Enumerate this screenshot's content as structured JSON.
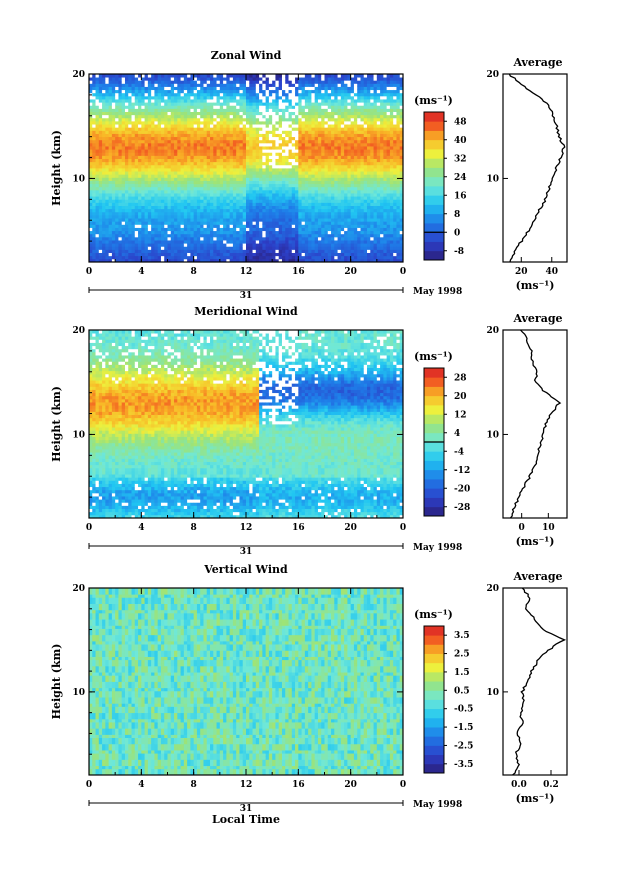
{
  "chart_data": [
    {
      "type": "heatmap",
      "title": "Zonal Wind",
      "ylabel": "Height (km)",
      "xlabel": "",
      "xlim": [
        0,
        24
      ],
      "ylim": [
        2,
        20
      ],
      "x_ticks": [
        "0",
        "4",
        "8",
        "12",
        "16",
        "20",
        "0"
      ],
      "y_ticks": [
        "10",
        "20"
      ],
      "date_day": "31",
      "date_label": "May 1998",
      "colorbar": {
        "unit_label": "(ms⁻¹)",
        "ticks": [
          "48",
          "40",
          "32",
          "24",
          "16",
          "8",
          "0",
          "-8"
        ],
        "min": -12,
        "max": 52,
        "zero_line": 0
      },
      "field": {
        "description_values": "wind speed by local time and height",
        "jet_height_km": 13,
        "jet_peak": 46,
        "low_level_min": -4
      },
      "average_profile": {
        "title": "Average",
        "xlabel": "(ms⁻¹)",
        "x_ticks": [
          "20",
          "40"
        ],
        "xlim": [
          8,
          50
        ],
        "y_ticks": [
          "10",
          "20"
        ],
        "heights": [
          2,
          3,
          4,
          5,
          6,
          7,
          8,
          9,
          10,
          11,
          12,
          13,
          14,
          15,
          16,
          17,
          18,
          19,
          20
        ],
        "values": [
          12,
          16,
          20,
          25,
          28,
          32,
          36,
          38,
          40,
          43,
          46,
          48,
          45,
          43,
          41,
          38,
          30,
          20,
          12
        ]
      }
    },
    {
      "type": "heatmap",
      "title": "Meridional Wind",
      "ylabel": "Height (km)",
      "xlabel": "",
      "xlim": [
        0,
        24
      ],
      "ylim": [
        2,
        20
      ],
      "x_ticks": [
        "0",
        "4",
        "8",
        "12",
        "16",
        "20",
        "0"
      ],
      "y_ticks": [
        "10",
        "20"
      ],
      "date_day": "31",
      "date_label": "May 1998",
      "colorbar": {
        "unit_label": "(ms⁻¹)",
        "ticks": [
          "28",
          "20",
          "12",
          "4",
          "-4",
          "-12",
          "-20",
          "-28"
        ],
        "min": -32,
        "max": 32,
        "zero_line": 0
      },
      "field": {
        "description_values": "wind speed by local time and height",
        "jet_height_km": 13,
        "jet_peak": 26,
        "upper_negative_min": -22,
        "low_level_min": -16
      },
      "average_profile": {
        "title": "Average",
        "xlabel": "(ms⁻¹)",
        "x_ticks": [
          "0",
          "10"
        ],
        "xlim": [
          -7,
          17
        ],
        "y_ticks": [
          "10",
          "20"
        ],
        "heights": [
          2,
          3,
          4,
          5,
          6,
          7,
          8,
          9,
          10,
          11,
          12,
          13,
          14,
          15,
          16,
          17,
          18,
          19,
          20
        ],
        "values": [
          -4,
          -3,
          -1,
          1,
          3,
          5,
          6,
          7,
          8,
          9,
          11,
          14,
          9,
          5,
          6,
          4,
          4,
          2,
          0
        ]
      }
    },
    {
      "type": "heatmap",
      "title": "Vertical Wind",
      "ylabel": "Height (km)",
      "xlabel": "Local Time",
      "xlim": [
        0,
        24
      ],
      "ylim": [
        2,
        20
      ],
      "x_ticks": [
        "0",
        "4",
        "8",
        "12",
        "16",
        "20",
        "0"
      ],
      "y_ticks": [
        "10",
        "20"
      ],
      "date_day": "31",
      "date_label": "May 1998",
      "colorbar": {
        "unit_label": "(ms⁻¹)",
        "ticks": [
          "3.5",
          "2.5",
          "1.5",
          "0.5",
          "-0.5",
          "-1.5",
          "-2.5",
          "-3.5"
        ],
        "min": -4,
        "max": 4
      },
      "field": {
        "description_values": "vertical wind by local time and height",
        "mean": 0,
        "range": [
          -1,
          1
        ]
      },
      "average_profile": {
        "title": "Average",
        "xlabel": "(ms⁻¹)",
        "x_ticks": [
          "0.0",
          "0.2"
        ],
        "xlim": [
          -0.1,
          0.3
        ],
        "y_ticks": [
          "10",
          "20"
        ],
        "heights": [
          2,
          3,
          4,
          5,
          6,
          7,
          8,
          9,
          10,
          11,
          12,
          13,
          14,
          15,
          16,
          17,
          18,
          19,
          20
        ],
        "values": [
          -0.04,
          0.0,
          -0.02,
          0.01,
          -0.01,
          0.02,
          0.01,
          0.03,
          0.02,
          0.05,
          0.08,
          0.12,
          0.18,
          0.28,
          0.15,
          0.1,
          0.04,
          0.07,
          0.02
        ]
      }
    }
  ]
}
